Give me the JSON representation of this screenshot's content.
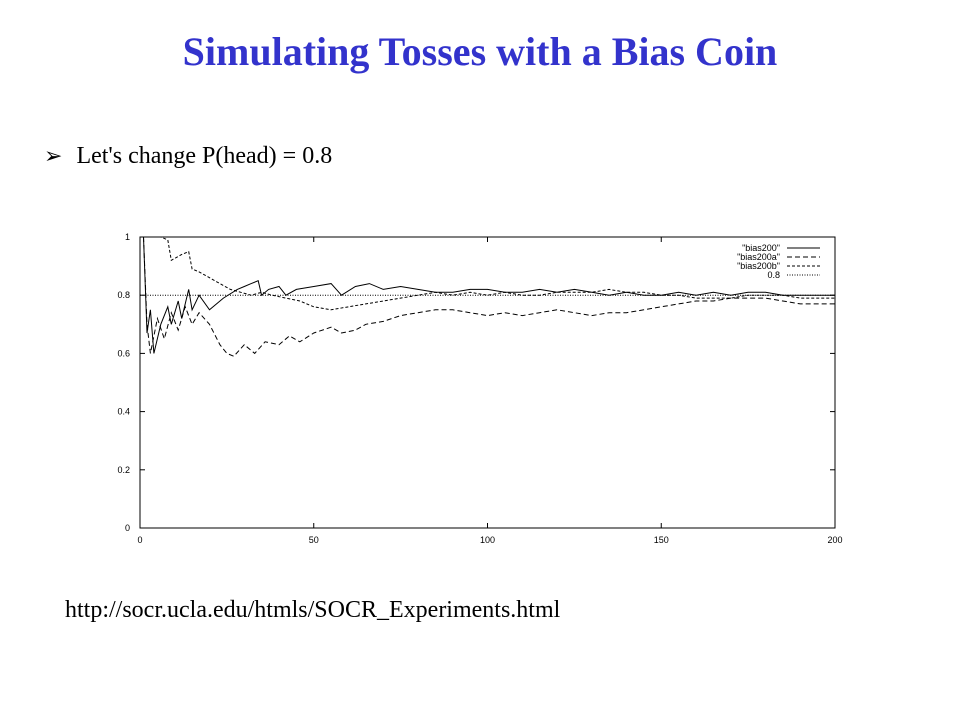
{
  "slide": {
    "title": "Simulating Tosses with a Bias Coin",
    "bullet_icon": "arrow-bullet-icon",
    "bullet_text": "Let's change P(head) = 0.8",
    "url": "http://socr.ucla.edu/htmls/SOCR_Experiments.html"
  },
  "chart_data": {
    "type": "line",
    "title": "",
    "xlabel": "",
    "ylabel": "",
    "xlim": [
      0,
      200
    ],
    "ylim": [
      0,
      1
    ],
    "xticks": [
      0,
      50,
      100,
      150,
      200
    ],
    "yticks": [
      0,
      0.2,
      0.4,
      0.6,
      0.8,
      1
    ],
    "x_tick_labels": [
      "0",
      "50",
      "100",
      "150",
      "200"
    ],
    "y_tick_labels": [
      "0",
      "0.2",
      "0.4",
      "0.6",
      "0.8",
      "1"
    ],
    "grid": false,
    "legend_position": "top-right",
    "series": [
      {
        "name": "\"bias200\"",
        "style": "solid",
        "points": [
          [
            1,
            1
          ],
          [
            2,
            0.67
          ],
          [
            3,
            0.75
          ],
          [
            4,
            0.6
          ],
          [
            6,
            0.7
          ],
          [
            8,
            0.76
          ],
          [
            9,
            0.7
          ],
          [
            11,
            0.78
          ],
          [
            12,
            0.72
          ],
          [
            14,
            0.82
          ],
          [
            15,
            0.75
          ],
          [
            17,
            0.8
          ],
          [
            20,
            0.75
          ],
          [
            24,
            0.79
          ],
          [
            28,
            0.82
          ],
          [
            30,
            0.83
          ],
          [
            32,
            0.84
          ],
          [
            34,
            0.85
          ],
          [
            35,
            0.8
          ],
          [
            37,
            0.82
          ],
          [
            40,
            0.83
          ],
          [
            42,
            0.8
          ],
          [
            45,
            0.82
          ],
          [
            50,
            0.83
          ],
          [
            55,
            0.84
          ],
          [
            58,
            0.8
          ],
          [
            62,
            0.83
          ],
          [
            66,
            0.84
          ],
          [
            70,
            0.82
          ],
          [
            75,
            0.83
          ],
          [
            80,
            0.82
          ],
          [
            85,
            0.81
          ],
          [
            90,
            0.81
          ],
          [
            95,
            0.82
          ],
          [
            100,
            0.82
          ],
          [
            105,
            0.81
          ],
          [
            110,
            0.81
          ],
          [
            115,
            0.82
          ],
          [
            120,
            0.81
          ],
          [
            125,
            0.82
          ],
          [
            130,
            0.81
          ],
          [
            135,
            0.8
          ],
          [
            140,
            0.81
          ],
          [
            145,
            0.8
          ],
          [
            150,
            0.8
          ],
          [
            155,
            0.81
          ],
          [
            160,
            0.8
          ],
          [
            165,
            0.81
          ],
          [
            170,
            0.8
          ],
          [
            175,
            0.81
          ],
          [
            180,
            0.81
          ],
          [
            185,
            0.8
          ],
          [
            190,
            0.8
          ],
          [
            195,
            0.8
          ],
          [
            200,
            0.8
          ]
        ]
      },
      {
        "name": "\"bias200a\"",
        "style": "dashed",
        "points": [
          [
            1,
            1
          ],
          [
            2,
            0.7
          ],
          [
            3,
            0.6
          ],
          [
            5,
            0.72
          ],
          [
            7,
            0.65
          ],
          [
            9,
            0.74
          ],
          [
            11,
            0.68
          ],
          [
            13,
            0.76
          ],
          [
            15,
            0.7
          ],
          [
            17,
            0.74
          ],
          [
            20,
            0.7
          ],
          [
            23,
            0.63
          ],
          [
            25,
            0.6
          ],
          [
            27,
            0.59
          ],
          [
            30,
            0.63
          ],
          [
            33,
            0.6
          ],
          [
            36,
            0.64
          ],
          [
            40,
            0.63
          ],
          [
            43,
            0.66
          ],
          [
            46,
            0.64
          ],
          [
            50,
            0.67
          ],
          [
            55,
            0.69
          ],
          [
            58,
            0.67
          ],
          [
            62,
            0.68
          ],
          [
            65,
            0.7
          ],
          [
            70,
            0.71
          ],
          [
            75,
            0.73
          ],
          [
            80,
            0.74
          ],
          [
            85,
            0.75
          ],
          [
            90,
            0.75
          ],
          [
            95,
            0.74
          ],
          [
            100,
            0.73
          ],
          [
            105,
            0.74
          ],
          [
            110,
            0.73
          ],
          [
            115,
            0.74
          ],
          [
            120,
            0.75
          ],
          [
            125,
            0.74
          ],
          [
            130,
            0.73
          ],
          [
            135,
            0.74
          ],
          [
            140,
            0.74
          ],
          [
            145,
            0.75
          ],
          [
            150,
            0.76
          ],
          [
            155,
            0.77
          ],
          [
            160,
            0.78
          ],
          [
            165,
            0.78
          ],
          [
            170,
            0.79
          ],
          [
            175,
            0.79
          ],
          [
            180,
            0.79
          ],
          [
            185,
            0.78
          ],
          [
            190,
            0.77
          ],
          [
            195,
            0.77
          ],
          [
            200,
            0.77
          ]
        ]
      },
      {
        "name": "\"bias200b\"",
        "style": "short-dashed",
        "points": [
          [
            1,
            1
          ],
          [
            3,
            1
          ],
          [
            6,
            1
          ],
          [
            8,
            0.99
          ],
          [
            9,
            0.92
          ],
          [
            12,
            0.94
          ],
          [
            14,
            0.95
          ],
          [
            15,
            0.89
          ],
          [
            17,
            0.88
          ],
          [
            20,
            0.86
          ],
          [
            23,
            0.84
          ],
          [
            26,
            0.82
          ],
          [
            29,
            0.81
          ],
          [
            32,
            0.8
          ],
          [
            35,
            0.81
          ],
          [
            38,
            0.8
          ],
          [
            42,
            0.79
          ],
          [
            46,
            0.78
          ],
          [
            50,
            0.76
          ],
          [
            55,
            0.75
          ],
          [
            60,
            0.76
          ],
          [
            65,
            0.77
          ],
          [
            70,
            0.78
          ],
          [
            75,
            0.79
          ],
          [
            80,
            0.8
          ],
          [
            85,
            0.81
          ],
          [
            90,
            0.8
          ],
          [
            95,
            0.81
          ],
          [
            100,
            0.8
          ],
          [
            105,
            0.81
          ],
          [
            110,
            0.8
          ],
          [
            115,
            0.8
          ],
          [
            120,
            0.81
          ],
          [
            125,
            0.81
          ],
          [
            130,
            0.81
          ],
          [
            135,
            0.82
          ],
          [
            140,
            0.81
          ],
          [
            145,
            0.81
          ],
          [
            150,
            0.8
          ],
          [
            155,
            0.8
          ],
          [
            160,
            0.79
          ],
          [
            165,
            0.79
          ],
          [
            170,
            0.79
          ],
          [
            175,
            0.8
          ],
          [
            180,
            0.8
          ],
          [
            185,
            0.8
          ],
          [
            190,
            0.79
          ],
          [
            195,
            0.79
          ],
          [
            200,
            0.79
          ]
        ]
      },
      {
        "name": "0.8",
        "style": "dotted",
        "points": [
          [
            0,
            0.8
          ],
          [
            200,
            0.8
          ]
        ]
      }
    ]
  }
}
